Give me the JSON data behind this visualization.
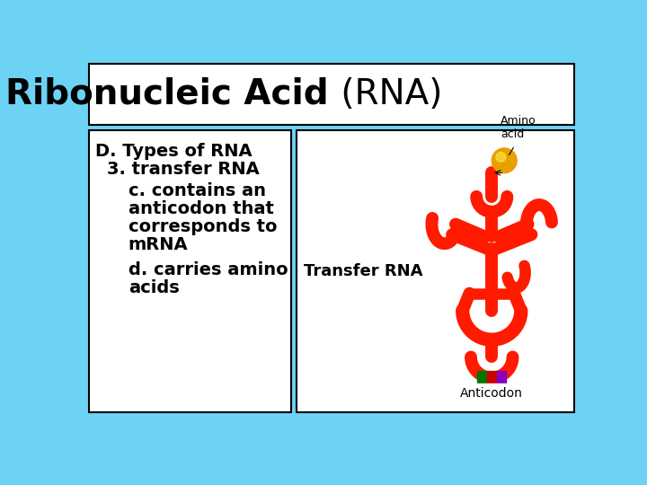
{
  "background_color": "#6dd3f5",
  "title_bold": "Ribonucleic Acid",
  "title_normal": " (RNA)",
  "title_box_color": "#ffffff",
  "title_box_edge": "#000000",
  "title_fontsize": 28,
  "text_box_color": "#ffffff",
  "text_box_edge": "#000000",
  "image_box_color": "#ffffff",
  "image_box_edge": "#000000",
  "transfer_rna_label": "Transfer RNA",
  "transfer_rna_label_fontsize": 13,
  "anticodon_label": "Anticodon",
  "amino_acid_label": "Amino\nacid",
  "text_fontsize": 14,
  "rna_color": "#ff1a00",
  "amino_color": "#e8a000",
  "bar_colors": [
    "#007700",
    "#cc0000",
    "#8800bb"
  ]
}
